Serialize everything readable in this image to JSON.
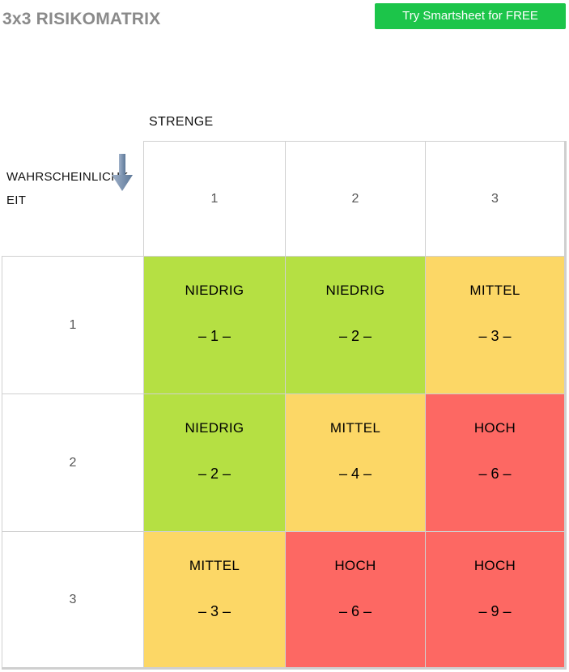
{
  "header": {
    "title": "3x3 RISIKOMATRIX",
    "cta_label": "Try Smartsheet for FREE",
    "cta_color": "#1cc54a"
  },
  "matrix": {
    "severity_label": "STRENGE",
    "probability_label": "WAHRSCHEINLICHKEIT",
    "severity_headers": [
      "1",
      "2",
      "3"
    ],
    "probability_headers": [
      "1",
      "2",
      "3"
    ],
    "rows": [
      [
        {
          "level": "NIEDRIG",
          "score": "– 1 –",
          "color": "green"
        },
        {
          "level": "NIEDRIG",
          "score": "– 2 –",
          "color": "green"
        },
        {
          "level": "MITTEL",
          "score": "– 3 –",
          "color": "yellow"
        }
      ],
      [
        {
          "level": "NIEDRIG",
          "score": "– 2 –",
          "color": "green"
        },
        {
          "level": "MITTEL",
          "score": "– 4 –",
          "color": "yellow"
        },
        {
          "level": "HOCH",
          "score": "– 6 –",
          "color": "red"
        }
      ],
      [
        {
          "level": "MITTEL",
          "score": "– 3 –",
          "color": "yellow"
        },
        {
          "level": "HOCH",
          "score": "– 6 –",
          "color": "red"
        },
        {
          "level": "HOCH",
          "score": "– 9 –",
          "color": "red"
        }
      ]
    ],
    "colors": {
      "green": "#b5e043",
      "yellow": "#fcd766",
      "red": "#fd6863"
    }
  }
}
